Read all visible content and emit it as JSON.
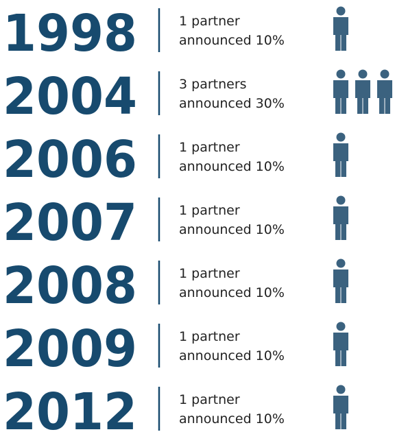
{
  "rows": [
    {
      "year": "1998",
      "line1": "1 partner",
      "line2": "announced 10%",
      "icons": 1
    },
    {
      "year": "2004",
      "line1": "3 partners",
      "line2": "announced 30%",
      "icons": 3
    },
    {
      "year": "2006",
      "line1": "1 partner",
      "line2": "announced 10%",
      "icons": 1
    },
    {
      "year": "2007",
      "line1": "1 partner",
      "line2": "announced 10%",
      "icons": 1
    },
    {
      "year": "2008",
      "line1": "1 partner",
      "line2": "announced 10%",
      "icons": 1
    },
    {
      "year": "2009",
      "line1": "1 partner",
      "line2": "announced 10%",
      "icons": 1
    },
    {
      "year": "2012",
      "line1": "1 partner",
      "line2": "announced 10%",
      "icons": 1
    }
  ]
}
